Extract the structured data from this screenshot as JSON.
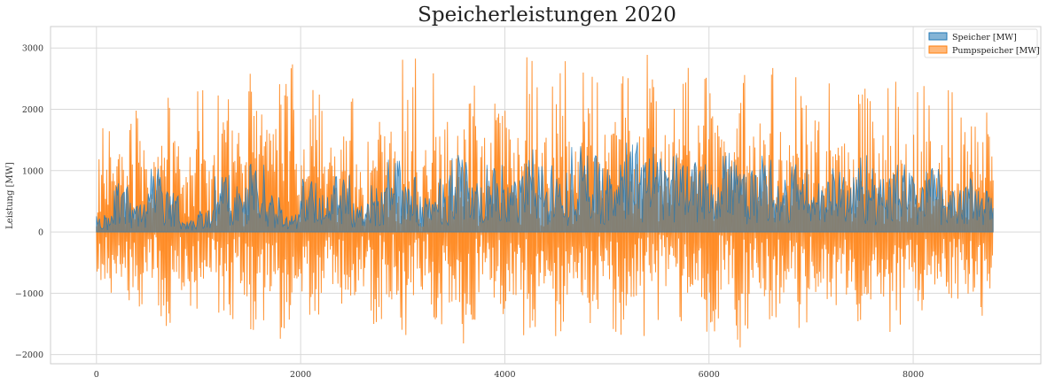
{
  "chart_data": {
    "type": "area",
    "title": "Speicherleistungen 2020",
    "xlabel": "",
    "ylabel": "Leistung [MW]",
    "xlim": [
      -450,
      9250
    ],
    "ylim": [
      -2150,
      3350
    ],
    "x_ticks": [
      0,
      2000,
      4000,
      6000,
      8000
    ],
    "y_ticks": [
      -2000,
      -1000,
      0,
      1000,
      2000,
      3000
    ],
    "grid": true,
    "legend_position": "top-right",
    "x_range": [
      0,
      8783
    ],
    "series": [
      {
        "name": "Speicher [MW]",
        "color": "#1f77b4",
        "values_in_order": [
          300,
          900,
          500,
          1100,
          700,
          200,
          400,
          1000,
          800,
          1200,
          600,
          300,
          900,
          700,
          1100,
          500,
          800,
          1200,
          900,
          600,
          1000,
          1300,
          800,
          1100,
          900,
          1400,
          1200,
          1000,
          1500,
          1300,
          1100,
          1600,
          1400,
          1200,
          1300,
          1500,
          1100,
          1400,
          1000,
          1300,
          900,
          1200,
          800,
          1100,
          1000,
          1300,
          900,
          1200,
          1000,
          1100,
          800,
          900,
          700,
          600
        ]
      },
      {
        "name": "Pumpspeicher [MW]",
        "color": "#ff7f0e",
        "values_in_order": [
          1700,
          -1400,
          2000,
          -1500,
          2500,
          -1600,
          2400,
          -1300,
          2300,
          -1700,
          2600,
          -1800,
          2850,
          -1700,
          2400,
          -1500,
          2200,
          -1600,
          2500,
          -1800,
          2900,
          -1700,
          2700,
          -1900,
          2950,
          -1600,
          2600,
          -1700,
          3050,
          -1800,
          2800,
          -1700,
          2750,
          -1600,
          2900,
          -1800,
          2950,
          -1700,
          2800,
          -1900,
          2700,
          -1600,
          3050,
          -1800,
          2900,
          -1700,
          2650,
          -1850,
          2550,
          -1700,
          2450,
          -1800,
          2750,
          -1600,
          2550,
          -1500,
          2400,
          -1750,
          2250,
          -1400
        ]
      }
    ]
  }
}
